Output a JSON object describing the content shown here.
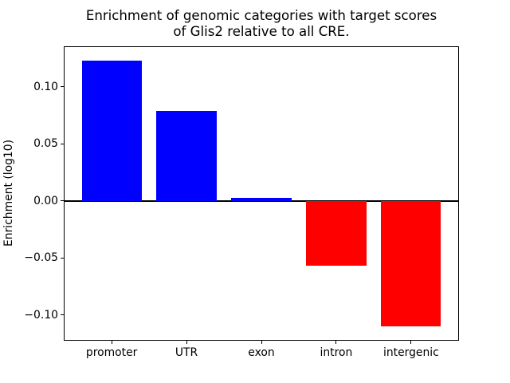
{
  "title": {
    "line1": "Enrichment of genomic categories with target scores",
    "line2": "of Glis2 relative to all CRE."
  },
  "chart_data": {
    "type": "bar",
    "title": "Enrichment of genomic categories with target scores of Glis2 relative to all CRE.",
    "categories": [
      "promoter",
      "UTR",
      "exon",
      "intron",
      "intergenic"
    ],
    "values": [
      0.123,
      0.079,
      0.003,
      -0.057,
      -0.11
    ],
    "xlabel": "",
    "ylabel": "Enrichment (log10)",
    "ylim": [
      -0.1225,
      0.1355
    ],
    "yticks": [
      0.1,
      0.05,
      0.0,
      -0.05,
      -0.1
    ],
    "ytick_labels": [
      "0.10",
      "0.05",
      "0.00",
      "−0.05",
      "−0.10"
    ],
    "positive_color": "#0000ff",
    "negative_color": "#ff0000",
    "axis_color": "#000000",
    "background_color": "#ffffff",
    "grid": false,
    "legend": "none",
    "zero_line": true,
    "bar_width_fraction": 0.8
  }
}
